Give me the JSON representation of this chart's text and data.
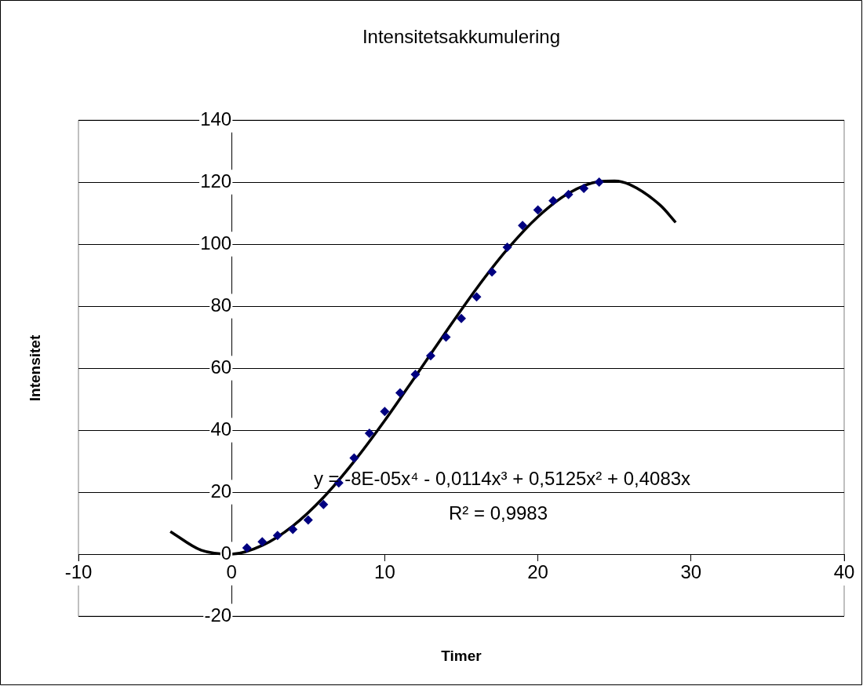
{
  "chart_data": {
    "type": "scatter",
    "title": "Intensitetsakkumulering",
    "xlabel": "Timer",
    "ylabel": "Intensitet",
    "xlim": [
      -10,
      40
    ],
    "xticks": [
      -10,
      0,
      10,
      20,
      30,
      40
    ],
    "ylim": [
      -20,
      140
    ],
    "yticks": [
      -20,
      0,
      20,
      40,
      60,
      80,
      100,
      120,
      140
    ],
    "grid": "y",
    "legend": false,
    "series": [
      {
        "color": "#000080",
        "marker": "diamond",
        "x": [
          1,
          2,
          3,
          4,
          5,
          6,
          7,
          8,
          9,
          10,
          11,
          12,
          13,
          14,
          15,
          16,
          17,
          18,
          19,
          20,
          21,
          22,
          23,
          24
        ],
        "values": [
          2,
          4,
          6,
          8,
          11,
          16,
          23,
          31,
          39,
          46,
          52,
          58,
          64,
          70,
          76,
          83,
          91,
          99,
          106,
          111,
          114,
          116,
          118,
          120
        ]
      },
      {
        "type": "line",
        "color": "#000000",
        "marker": "none",
        "line_style": "solid",
        "x": [
          -4,
          -2,
          0,
          2,
          4,
          6,
          8,
          10,
          12,
          14,
          16,
          18,
          20,
          22,
          24,
          25,
          26,
          28,
          29
        ],
        "values": [
          7.3,
          1.3,
          0,
          2.8,
          9.1,
          18.3,
          29.9,
          43.1,
          57.3,
          71.7,
          85.7,
          98.3,
          108.8,
          116.4,
          120.2,
          120.4,
          119.2,
          112.5,
          107
        ]
      }
    ],
    "annotations": [
      "y = -8E-05x⁴ - 0,0114x³ + 0,5125x² + 0,4083x",
      "R² = 0,9983"
    ]
  }
}
